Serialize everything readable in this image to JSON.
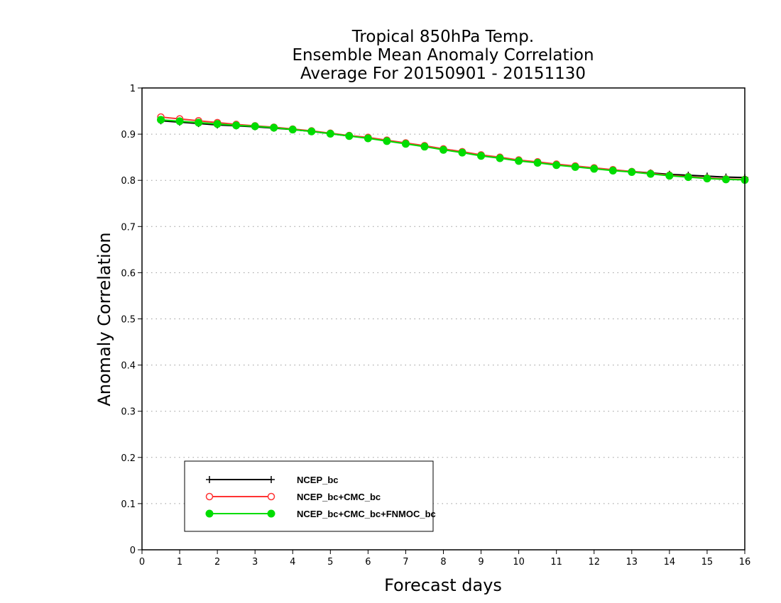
{
  "chart_data": {
    "type": "line",
    "title_lines": [
      "Tropical 850hPa Temp.",
      "Ensemble Mean Anomaly Correlation",
      "Average For 20150901 - 20151130"
    ],
    "xlabel": "Forecast days",
    "ylabel": "Anomaly Correlation",
    "xlim": [
      0,
      16
    ],
    "ylim": [
      0,
      1
    ],
    "x_ticks": [
      0,
      1,
      2,
      3,
      4,
      5,
      6,
      7,
      8,
      9,
      10,
      11,
      12,
      13,
      14,
      15,
      16
    ],
    "y_ticks": [
      0,
      0.1,
      0.2,
      0.3,
      0.4,
      0.5,
      0.6,
      0.7,
      0.8,
      0.9,
      1
    ],
    "y_tick_labels": [
      "0",
      "0.1",
      "0.2",
      "0.3",
      "0.4",
      "0.5",
      "0.6",
      "0.7",
      "0.8",
      "0.9",
      "1"
    ],
    "grid": "horizontal dotted",
    "legend_position": "bottom-left",
    "x": [
      0.5,
      1,
      1.5,
      2,
      2.5,
      3,
      3.5,
      4,
      4.5,
      5,
      5.5,
      6,
      6.5,
      7,
      7.5,
      8,
      8.5,
      9,
      9.5,
      10,
      10.5,
      11,
      11.5,
      12,
      12.5,
      13,
      13.5,
      14,
      14.5,
      15,
      15.5,
      16
    ],
    "series": [
      {
        "name": "NCEP_bc",
        "color": "#000000",
        "marker": "plus",
        "values": [
          0.929,
          0.926,
          0.923,
          0.92,
          0.918,
          0.916,
          0.913,
          0.91,
          0.906,
          0.901,
          0.896,
          0.892,
          0.886,
          0.88,
          0.874,
          0.867,
          0.861,
          0.854,
          0.849,
          0.843,
          0.839,
          0.834,
          0.83,
          0.826,
          0.822,
          0.819,
          0.816,
          0.813,
          0.811,
          0.809,
          0.807,
          0.806
        ]
      },
      {
        "name": "NCEP_bc+CMC_bc",
        "color": "#ff3333",
        "marker": "open-circle",
        "values": [
          0.937,
          0.933,
          0.929,
          0.925,
          0.921,
          0.918,
          0.915,
          0.911,
          0.907,
          0.902,
          0.897,
          0.893,
          0.887,
          0.881,
          0.875,
          0.868,
          0.862,
          0.855,
          0.85,
          0.844,
          0.84,
          0.835,
          0.831,
          0.827,
          0.823,
          0.819,
          0.815,
          0.811,
          0.808,
          0.805,
          0.803,
          0.802
        ]
      },
      {
        "name": "NCEP_bc+CMC_bc+FNMOC_bc",
        "color": "#00dd00",
        "marker": "filled-circle",
        "values": [
          0.931,
          0.928,
          0.925,
          0.922,
          0.919,
          0.917,
          0.914,
          0.91,
          0.906,
          0.901,
          0.896,
          0.891,
          0.885,
          0.879,
          0.873,
          0.866,
          0.86,
          0.853,
          0.848,
          0.842,
          0.838,
          0.833,
          0.829,
          0.825,
          0.821,
          0.818,
          0.814,
          0.81,
          0.807,
          0.804,
          0.802,
          0.801
        ]
      }
    ]
  }
}
